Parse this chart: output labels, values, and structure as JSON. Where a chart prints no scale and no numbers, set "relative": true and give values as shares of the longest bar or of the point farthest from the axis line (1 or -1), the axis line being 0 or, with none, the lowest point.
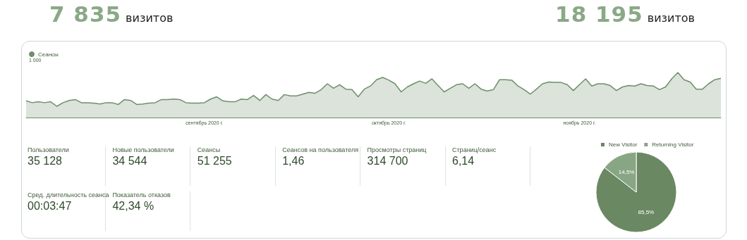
{
  "chart_data": [
    {
      "type": "area",
      "relative": true,
      "legend": "top left",
      "annotations": [
        "7 835 визитов",
        "18 195 визитов",
        "1 000"
      ],
      "categories": [
        null,
        null,
        null,
        null,
        null,
        null,
        null,
        null,
        null,
        null,
        null,
        null,
        null,
        null,
        null,
        null,
        null,
        null,
        null,
        null,
        null,
        null,
        null,
        null,
        null,
        null,
        null,
        null,
        null,
        "сентябрь 2020 г.",
        null,
        null,
        null,
        null,
        null,
        null,
        null,
        null,
        null,
        null,
        null,
        null,
        null,
        null,
        null,
        null,
        null,
        null,
        null,
        null,
        null,
        null,
        null,
        null,
        null,
        null,
        null,
        null,
        null,
        "октябрь 2020 г.",
        null,
        null,
        null,
        null,
        null,
        null,
        null,
        null,
        null,
        null,
        null,
        null,
        null,
        null,
        null,
        null,
        null,
        null,
        null,
        null,
        null,
        null,
        null,
        null,
        null,
        null,
        null,
        null,
        null,
        null,
        "ноябрь 2020 г.",
        null,
        null,
        null,
        null,
        null,
        null,
        null,
        null,
        null,
        null,
        null,
        null,
        null,
        null,
        null,
        null,
        null,
        null,
        null,
        null,
        null,
        null,
        null
      ],
      "series": [
        {
          "name": "Сеансы",
          "color": "#6e8f6a",
          "values": [
            0.37,
            0.33,
            0.35,
            0.33,
            0.35,
            0.25,
            0.33,
            0.38,
            0.4,
            0.33,
            0.33,
            0.32,
            0.3,
            0.33,
            0.33,
            0.29,
            0.4,
            0.38,
            0.29,
            0.3,
            0.32,
            0.33,
            0.4,
            0.4,
            0.41,
            0.4,
            0.33,
            0.32,
            0.32,
            0.33,
            0.41,
            0.46,
            0.37,
            0.35,
            0.35,
            0.41,
            0.4,
            0.49,
            0.38,
            0.51,
            0.41,
            0.38,
            0.51,
            0.48,
            0.48,
            0.52,
            0.56,
            0.54,
            0.62,
            0.75,
            0.65,
            0.73,
            0.63,
            0.62,
            0.46,
            0.63,
            0.7,
            0.84,
            0.89,
            0.83,
            0.75,
            0.57,
            0.68,
            0.75,
            0.81,
            0.76,
            0.86,
            0.71,
            0.57,
            0.65,
            0.73,
            0.75,
            0.65,
            0.75,
            0.63,
            0.59,
            0.62,
            0.84,
            0.84,
            0.83,
            0.7,
            0.62,
            0.52,
            0.63,
            0.75,
            0.79,
            0.78,
            0.78,
            0.73,
            0.6,
            0.73,
            0.86,
            0.7,
            0.75,
            0.75,
            0.71,
            0.6,
            0.68,
            0.71,
            0.7,
            0.75,
            0.71,
            0.7,
            0.62,
            0.68,
            0.86,
            1,
            0.84,
            0.79,
            0.63,
            0.63,
            0.75,
            0.84,
            0.87
          ]
        }
      ]
    },
    {
      "type": "other",
      "annotations": [
        "Пользователи",
        "35 128",
        "Новые пользователи",
        "34 544",
        "Сеансы",
        "51 255",
        "Сеансов на пользователя",
        "1,46",
        "Просмотры страниц",
        "314 700",
        "Страниц/сеанс",
        "6,14",
        "Сред. длительность сеанса",
        "00:03:47",
        "Показатель отказов",
        "42,34 %"
      ]
    },
    {
      "type": "pie",
      "legend": "top",
      "categories": [
        "New Visitor",
        "Returning Visitor"
      ],
      "values": [
        85.5,
        14.5
      ],
      "colors": [
        "#6a8862",
        "#88a584"
      ],
      "value_labels": [
        "85,5%",
        "14,5%"
      ]
    }
  ]
}
